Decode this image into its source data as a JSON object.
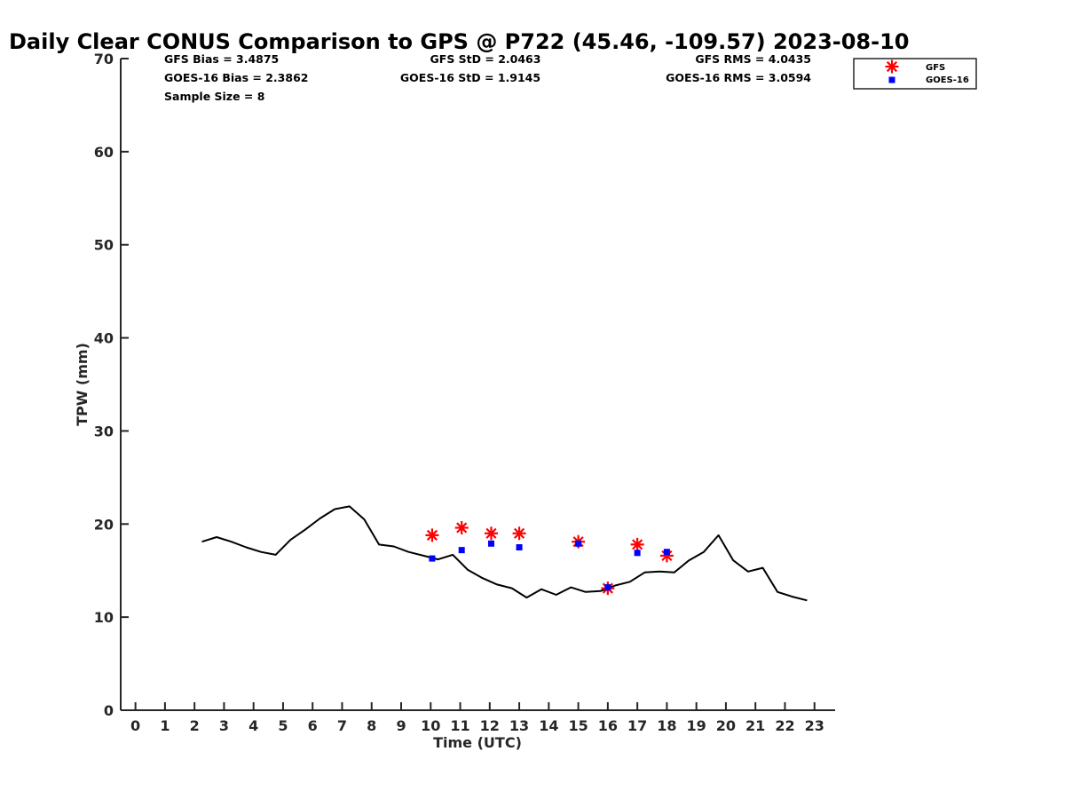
{
  "chart_data": {
    "type": "line",
    "title": "Daily Clear CONUS Comparison to GPS @ P722 (45.46, -109.57) 2023-08-10",
    "xlabel": "Time (UTC)",
    "ylabel": "TPW (mm)",
    "xlim": [
      -0.5,
      23.7
    ],
    "ylim": [
      0,
      70
    ],
    "x_ticks": [
      0,
      1,
      2,
      3,
      4,
      5,
      6,
      7,
      8,
      9,
      10,
      11,
      12,
      13,
      14,
      15,
      16,
      17,
      18,
      19,
      20,
      21,
      22,
      23
    ],
    "y_ticks": [
      0,
      10,
      20,
      30,
      40,
      50,
      60,
      70
    ],
    "grid": false,
    "legend_position": "top-right",
    "stats": {
      "gfs_bias": "GFS Bias = 3.4875",
      "goes_bias": "GOES-16 Bias = 2.3862",
      "sample_size": "Sample Size = 8",
      "gfs_std": "GFS StD = 2.0463",
      "goes_std": "GOES-16 StD = 1.9145",
      "gfs_rms": "GFS RMS = 4.0435",
      "goes_rms": "GOES-16 RMS = 3.0594"
    },
    "series": [
      {
        "name": "",
        "kind": "line",
        "color": "#000000",
        "x": [
          2.25,
          2.75,
          3.25,
          3.75,
          4.25,
          4.75,
          5.25,
          5.75,
          6.25,
          6.75,
          7.25,
          7.75,
          8.25,
          8.75,
          9.25,
          9.75,
          10.25,
          10.75,
          11.25,
          11.75,
          12.25,
          12.75,
          13.25,
          13.75,
          14.25,
          14.75,
          15.25,
          15.75,
          16.25,
          16.75,
          17.25,
          17.75,
          18.25,
          18.75,
          19.25,
          19.75,
          20.25,
          20.75,
          21.25,
          21.75,
          22.25,
          22.75
        ],
        "y": [
          18.1,
          18.6,
          18.1,
          17.5,
          17.0,
          16.7,
          18.3,
          19.4,
          20.6,
          21.6,
          21.9,
          20.5,
          17.8,
          17.6,
          17.0,
          16.6,
          16.2,
          16.7,
          15.1,
          14.2,
          13.5,
          13.1,
          12.1,
          13.0,
          12.4,
          13.2,
          12.7,
          12.8,
          13.4,
          13.8,
          14.8,
          14.9,
          14.8,
          16.1,
          17.0,
          18.8,
          16.1,
          14.9,
          15.3,
          12.7,
          12.2,
          11.8
        ]
      },
      {
        "name": "GFS",
        "kind": "scatter",
        "marker": "asterisk",
        "color": "#ff0000",
        "x": [
          10.05,
          11.05,
          12.05,
          13.0,
          15.0,
          16.0,
          17.0,
          18.0
        ],
        "y": [
          18.8,
          19.6,
          19.0,
          19.0,
          18.1,
          13.1,
          17.8,
          16.6
        ]
      },
      {
        "name": "GOES-16",
        "kind": "scatter",
        "marker": "square",
        "color": "#0000ff",
        "x": [
          10.05,
          11.05,
          12.05,
          13.0,
          15.0,
          16.0,
          17.0,
          18.0
        ],
        "y": [
          16.3,
          17.2,
          17.9,
          17.5,
          17.9,
          13.2,
          16.9,
          17.0
        ]
      }
    ]
  }
}
